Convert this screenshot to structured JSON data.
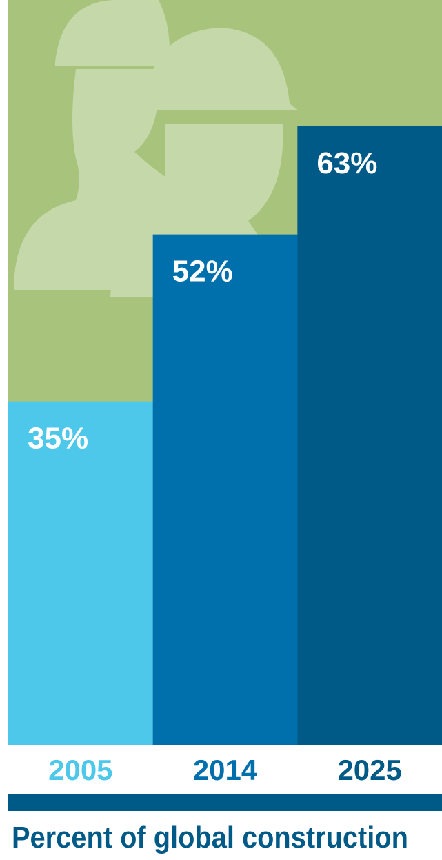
{
  "chart_data": {
    "type": "bar",
    "title": "Percent of global construction",
    "categories": [
      "2005",
      "2014",
      "2025"
    ],
    "values": [
      35,
      52,
      63
    ],
    "value_labels": [
      "35%",
      "52%",
      "63%"
    ],
    "colors": [
      "#4ec8ea",
      "#0070ad",
      "#005a87"
    ]
  }
}
